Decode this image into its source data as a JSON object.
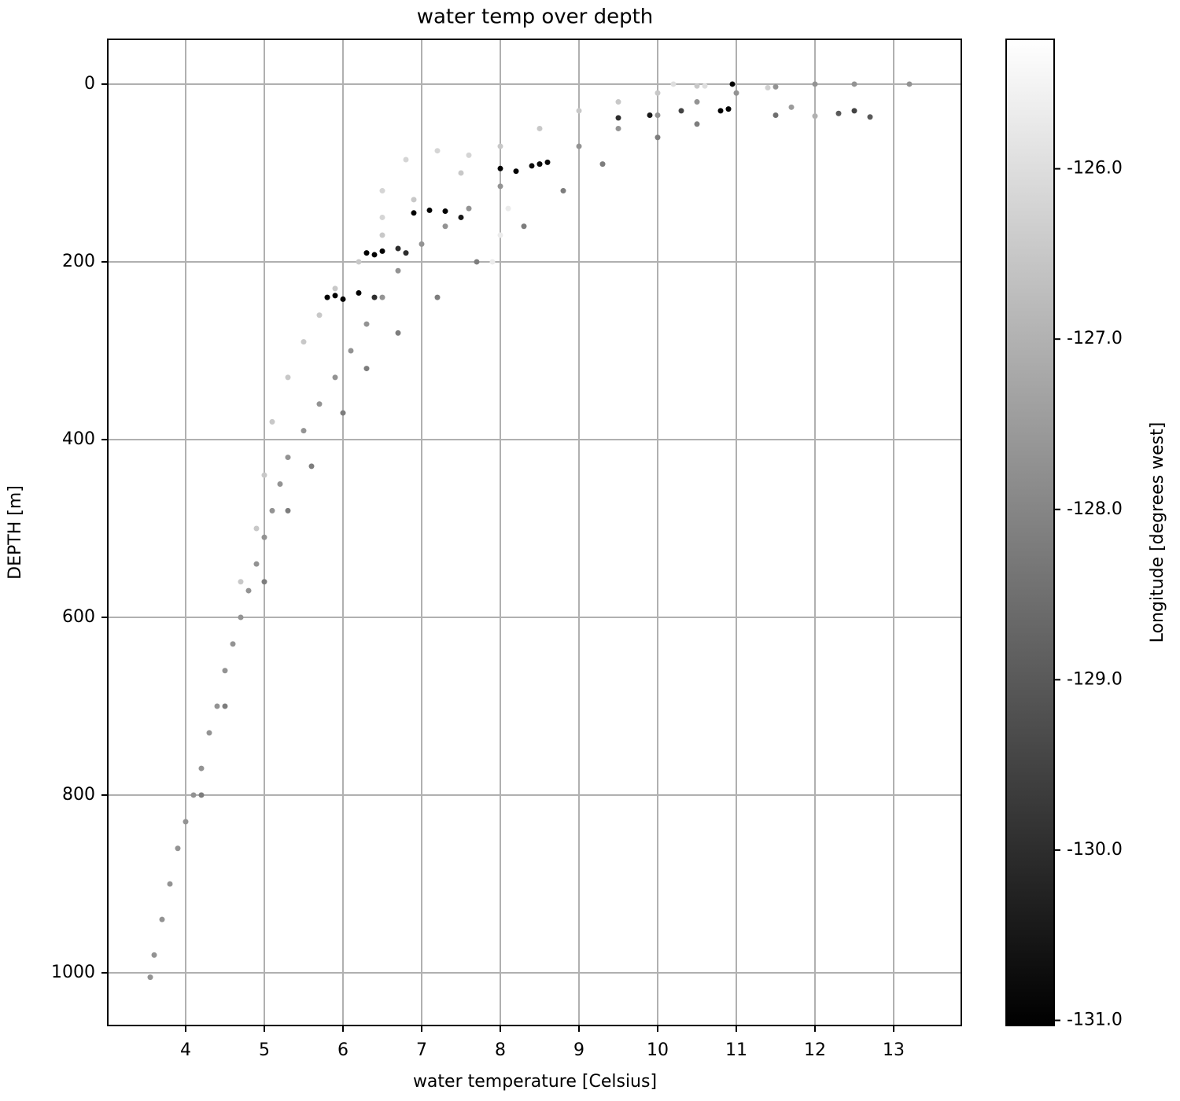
{
  "chart_data": {
    "type": "scatter",
    "title": "water temp over depth",
    "x_label": "water temperature [Celsius]",
    "y_label": "DEPTH [m]",
    "colorbar_label": "Longitude [degrees west]",
    "colormap": "gray",
    "grid": true,
    "y_inverted": true,
    "xlim": [
      3.01,
      13.86
    ],
    "ylim": [
      -50.4,
      1059.3
    ],
    "clim": [
      -131.03,
      -125.24
    ],
    "xticks": [
      4,
      5,
      6,
      7,
      8,
      9,
      10,
      11,
      12,
      13
    ],
    "yticks": [
      0,
      200,
      400,
      600,
      800,
      1000
    ],
    "cticks": [
      {
        "value": -126,
        "label": "-126.0"
      },
      {
        "value": -127,
        "label": "-127.0"
      },
      {
        "value": -128,
        "label": "-128.0"
      },
      {
        "value": -129,
        "label": "-129.0"
      },
      {
        "value": -130,
        "label": "-130.0"
      },
      {
        "value": -131,
        "label": "-131.0"
      }
    ],
    "x": [
      3.55,
      3.6,
      3.7,
      3.8,
      3.9,
      4.0,
      4.1,
      4.2,
      4.3,
      4.4,
      4.5,
      4.6,
      4.7,
      4.8,
      4.9,
      5.0,
      5.1,
      5.2,
      5.3,
      5.5,
      5.7,
      5.9,
      6.1,
      6.3,
      6.5,
      6.7,
      7.0,
      7.3,
      7.6,
      8.0,
      8.5,
      9.0,
      9.5,
      10,
      10.5,
      11,
      11.5,
      12,
      12.5,
      13.2,
      4.7,
      4.9,
      5.0,
      5.1,
      5.3,
      5.5,
      5.7,
      5.9,
      6.2,
      6.5,
      6.9,
      7.5,
      8,
      8.5,
      9,
      9.5,
      10,
      10.5,
      6.5,
      6.5,
      6.8,
      7.2,
      7.6,
      7.9,
      8.0,
      8.1,
      4.2,
      4.5,
      5.0,
      5.3,
      5.6,
      6.0,
      6.3,
      6.7,
      7.2,
      7.7,
      8.3,
      8.8,
      9.3,
      10,
      10.5,
      5.8,
      5.9,
      6.0,
      6.2,
      6.4,
      6.3,
      6.4,
      6.5,
      6.7,
      6.8,
      6.9,
      7.1,
      7.3,
      7.5,
      8.0,
      8.2,
      8.4,
      8.5,
      8.6,
      9.5,
      9.9,
      10.3,
      10.8,
      10.9,
      10.95,
      11.5,
      12.3,
      12.5,
      12.7,
      10.2,
      10.6,
      11.4,
      11.7,
      12
    ],
    "y": [
      1005,
      980,
      940,
      900,
      860,
      830,
      800,
      770,
      730,
      700,
      660,
      630,
      600,
      570,
      540,
      510,
      480,
      450,
      420,
      390,
      360,
      330,
      300,
      270,
      240,
      210,
      180,
      160,
      140,
      115,
      90,
      70,
      50,
      35,
      20,
      10,
      3,
      0,
      0,
      0,
      560,
      500,
      440,
      380,
      330,
      290,
      260,
      230,
      200,
      170,
      130,
      100,
      70,
      50,
      30,
      20,
      10,
      2,
      150,
      120,
      85,
      75,
      80,
      200,
      170,
      140,
      800,
      700,
      560,
      480,
      430,
      370,
      320,
      280,
      240,
      200,
      160,
      120,
      90,
      60,
      45,
      240,
      238,
      242,
      235,
      240,
      190,
      192,
      188,
      185,
      190,
      145,
      142,
      143,
      150,
      95,
      98,
      92,
      90,
      88,
      38,
      35,
      30,
      30,
      28,
      0,
      35,
      33,
      30,
      37,
      0,
      2,
      4,
      26,
      36
    ],
    "longitude": [
      -127.7,
      -127.7,
      -127.7,
      -127.7,
      -127.7,
      -127.7,
      -127.7,
      -127.7,
      -127.7,
      -127.7,
      -127.7,
      -127.7,
      -127.7,
      -127.7,
      -127.7,
      -127.7,
      -127.7,
      -127.7,
      -127.7,
      -127.7,
      -127.7,
      -127.7,
      -127.7,
      -127.7,
      -127.7,
      -127.7,
      -127.7,
      -127.7,
      -127.7,
      -127.7,
      -127.7,
      -127.7,
      -127.7,
      -127.7,
      -127.7,
      -127.7,
      -127.7,
      -127.7,
      -127.7,
      -127.7,
      -126.5,
      -126.5,
      -126.5,
      -126.5,
      -126.5,
      -126.5,
      -126.5,
      -126.5,
      -126.5,
      -126.5,
      -126.5,
      -126.5,
      -126.5,
      -126.5,
      -126.5,
      -126.5,
      -126.5,
      -126.5,
      -126.2,
      -126.2,
      -126.2,
      -126.2,
      -126.2,
      -125.7,
      -125.7,
      -125.7,
      -128.2,
      -128.2,
      -128.2,
      -128.2,
      -128.2,
      -128.2,
      -128.2,
      -128.2,
      -128.2,
      -128.2,
      -128.2,
      -128.2,
      -128.2,
      -128.2,
      -128.2,
      -131,
      -131,
      -131,
      -131,
      -130,
      -131,
      -131,
      -131,
      -130,
      -130,
      -131,
      -131,
      -131,
      -130.5,
      -131,
      -131,
      -130.8,
      -130.8,
      -130.8,
      -130,
      -130.5,
      -129.5,
      -131,
      -131,
      -131,
      -128.5,
      -129,
      -129.5,
      -129,
      -126,
      -126,
      -126.3,
      -127.5,
      -127
    ]
  }
}
